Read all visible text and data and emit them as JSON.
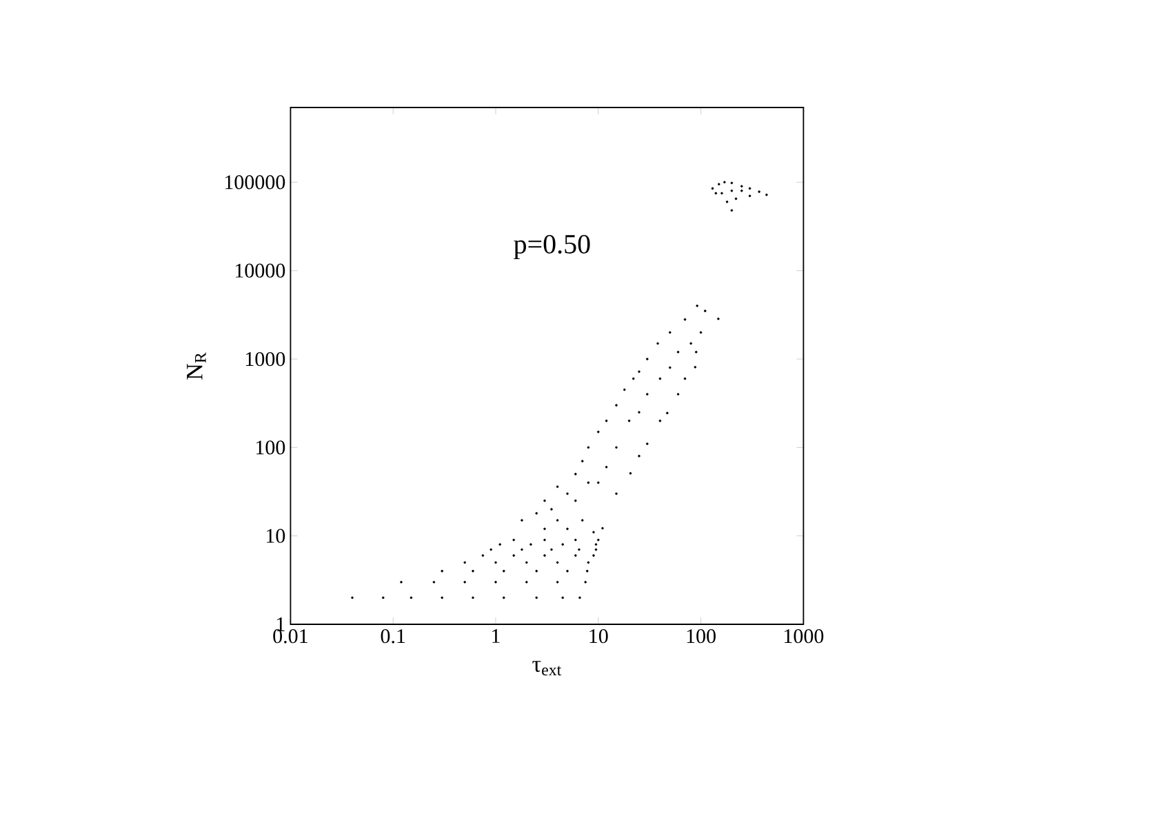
{
  "chart_data": {
    "type": "scatter",
    "xlabel": "τ$_{ext}$",
    "ylabel": "N$_{R}$",
    "annotations": [
      "p=0.50"
    ],
    "log": "xy",
    "marker": "circle",
    "xlim": [
      0.01,
      1000
    ],
    "ylim": [
      1,
      700000
    ],
    "xticks": [
      0.01,
      0.1,
      1,
      10,
      100,
      1000
    ],
    "yticks": [
      1,
      10,
      100,
      1000,
      10000,
      100000
    ],
    "series": [
      {
        "color": "#000000",
        "x": [
          0.04,
          0.08,
          0.15,
          0.3,
          0.6,
          1.2,
          2.5,
          4.5,
          6.6,
          0.12,
          0.25,
          0.5,
          1,
          2,
          4,
          7.5,
          0.3,
          0.6,
          1.2,
          2.5,
          5,
          7.8,
          0.5,
          1,
          2,
          4,
          8,
          0.75,
          1.5,
          3,
          6,
          9,
          0.9,
          1.8,
          3.5,
          6.5,
          9.5,
          1.1,
          2.2,
          4.5,
          9.5,
          1.5,
          3,
          6,
          10,
          1.8,
          2.5,
          3,
          4,
          3.5,
          5,
          6,
          7,
          8,
          10,
          12,
          15,
          18,
          22,
          25,
          30,
          38,
          50,
          70,
          92,
          110,
          148,
          100,
          90,
          88,
          70,
          60,
          47,
          40,
          30,
          25,
          20.6,
          15,
          11,
          9,
          7,
          5,
          10,
          15,
          20,
          30,
          50,
          80,
          6,
          12,
          8,
          40,
          60,
          25,
          4,
          3,
          130,
          150,
          170,
          200,
          250,
          300,
          370,
          437,
          300,
          220,
          180,
          200,
          160,
          200,
          250,
          140
        ],
        "values": [
          2,
          2,
          2,
          2,
          2,
          2,
          2,
          2,
          2,
          3,
          3,
          3,
          3,
          3,
          3,
          3,
          4,
          4,
          4,
          4,
          4,
          4,
          5,
          5,
          5,
          5,
          5,
          6,
          6,
          6,
          6,
          6,
          7,
          7,
          7,
          7,
          7,
          8,
          8,
          8,
          8,
          9,
          9,
          9,
          9,
          15,
          18,
          25,
          36,
          20,
          30,
          50,
          70,
          100,
          150,
          200,
          300,
          450,
          600,
          720,
          1000,
          1500,
          2000,
          2800,
          4000,
          3500,
          2850,
          2000,
          1200,
          810,
          600,
          400,
          245,
          200,
          110,
          80,
          51,
          30,
          12.2,
          11,
          15,
          12,
          40,
          100,
          200,
          400,
          800,
          1500,
          25,
          60,
          40,
          600,
          1200,
          250,
          15,
          12,
          85000,
          95000,
          100000,
          98000,
          90000,
          85000,
          78000,
          72000,
          70000,
          65000,
          60000,
          48000,
          75000,
          80000,
          80000,
          75000
        ]
      }
    ]
  }
}
